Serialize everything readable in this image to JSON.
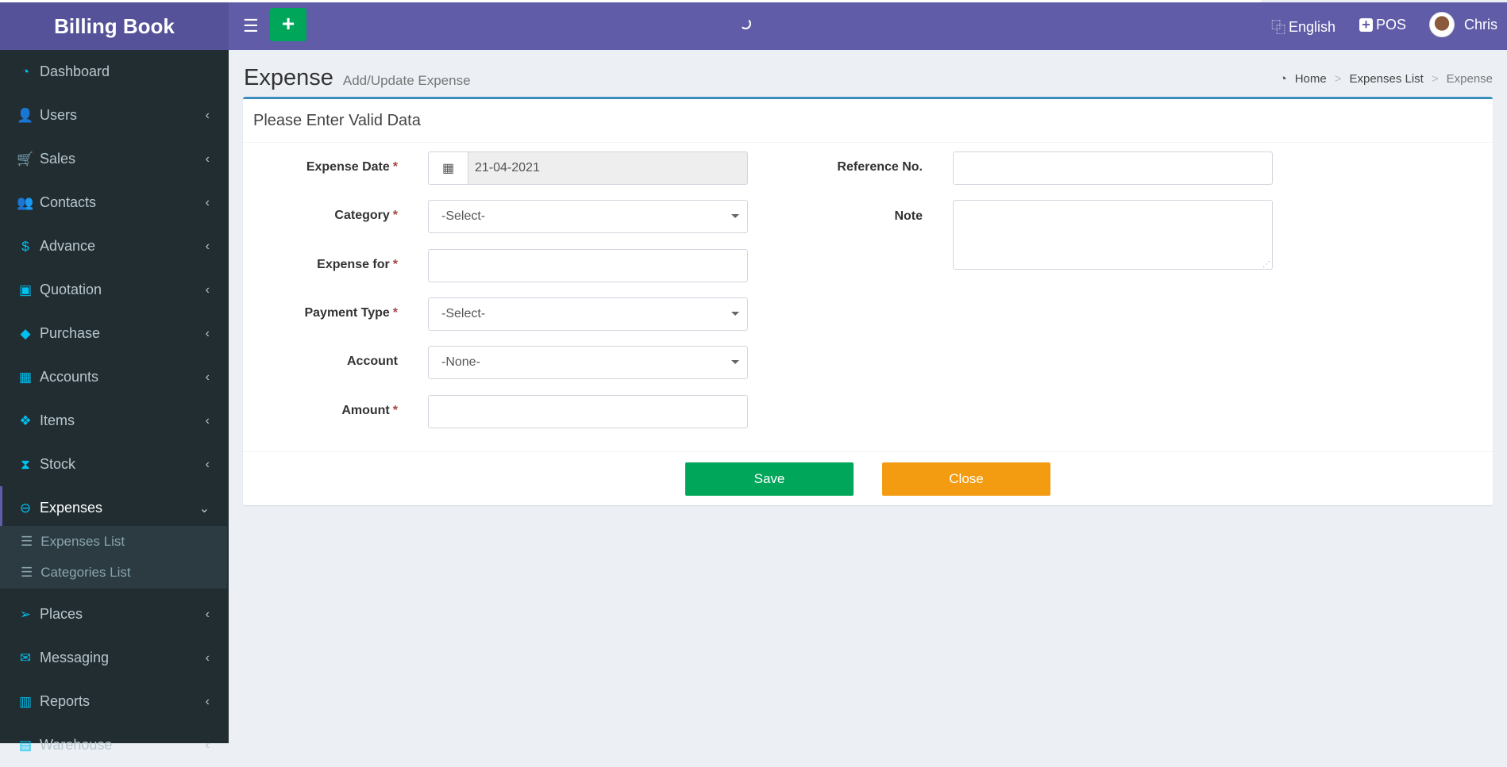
{
  "app": {
    "title": "Billing Book"
  },
  "navbar": {
    "language": "English",
    "pos": "POS",
    "user": "Chris"
  },
  "sidebar": {
    "items": [
      {
        "label": "Dashboard",
        "icon": "dashboard-icon",
        "glyph": "◔"
      },
      {
        "label": "Users",
        "icon": "user-plus-icon",
        "glyph": "👤"
      },
      {
        "label": "Sales",
        "icon": "cart-icon",
        "glyph": "🛒"
      },
      {
        "label": "Contacts",
        "icon": "users-icon",
        "glyph": "👥"
      },
      {
        "label": "Advance",
        "icon": "dollar-icon",
        "glyph": "$"
      },
      {
        "label": "Quotation",
        "icon": "calendar-plus-icon",
        "glyph": "▣"
      },
      {
        "label": "Purchase",
        "icon": "cube-icon",
        "glyph": "◆"
      },
      {
        "label": "Accounts",
        "icon": "th-large-icon",
        "glyph": "▦"
      },
      {
        "label": "Items",
        "icon": "cubes-icon",
        "glyph": "❖"
      },
      {
        "label": "Stock",
        "icon": "hourglass-icon",
        "glyph": "⧗"
      },
      {
        "label": "Expenses",
        "icon": "minus-circle-icon",
        "glyph": "⊖"
      },
      {
        "label": "Places",
        "icon": "paper-plane-icon",
        "glyph": "➢"
      },
      {
        "label": "Messaging",
        "icon": "envelope-icon",
        "glyph": "✉"
      },
      {
        "label": "Reports",
        "icon": "bar-chart-icon",
        "glyph": "▥"
      },
      {
        "label": "Warehouse",
        "icon": "building-icon",
        "glyph": "▤"
      }
    ],
    "expenses_sub": [
      "Expenses List",
      "Categories List"
    ]
  },
  "page": {
    "title": "Expense",
    "subtitle": "Add/Update Expense",
    "breadcrumb": [
      "Home",
      "Expenses List",
      "Expense"
    ]
  },
  "form": {
    "heading": "Please Enter Valid Data",
    "expense_date": {
      "label": "Expense Date",
      "value": "21-04-2021"
    },
    "category": {
      "label": "Category",
      "value": "-Select-"
    },
    "expense_for": {
      "label": "Expense for",
      "value": ""
    },
    "payment_type": {
      "label": "Payment Type",
      "value": "-Select-"
    },
    "account": {
      "label": "Account",
      "value": "-None-"
    },
    "amount": {
      "label": "Amount",
      "value": ""
    },
    "reference": {
      "label": "Reference No.",
      "value": ""
    },
    "note": {
      "label": "Note",
      "value": ""
    },
    "save": "Save",
    "close": "Close",
    "required_mark": "*"
  },
  "colors": {
    "header": "#605ca8",
    "sidebar": "#222d32",
    "save": "#00a65a",
    "close": "#f39c12",
    "accent": "#3c8dbc"
  }
}
